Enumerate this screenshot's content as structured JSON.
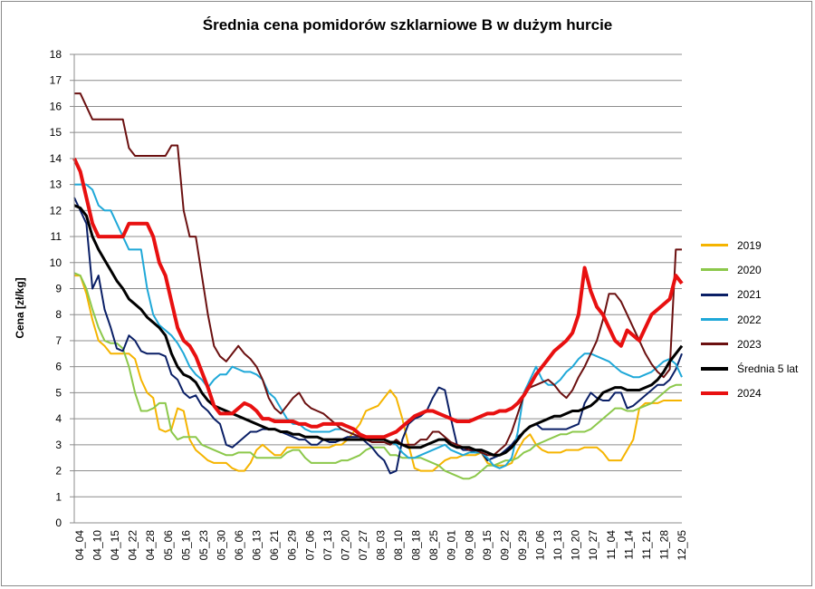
{
  "chart_data": {
    "type": "line",
    "title": "Średnia cena pomidorów szklarniowe B w dużym hurcie",
    "ylabel": "Cena [zł/kg]",
    "xlabel": "",
    "ylim": [
      0,
      18
    ],
    "yticks": [
      0,
      1,
      2,
      3,
      4,
      5,
      6,
      7,
      8,
      9,
      10,
      11,
      12,
      13,
      14,
      15,
      16,
      17,
      18
    ],
    "grid": true,
    "legend_position": "right",
    "x_tick_labels": [
      "04_04",
      "04_10",
      "04_15",
      "04_22",
      "04_28",
      "05_06",
      "05_16",
      "05_23",
      "05_30",
      "06_06",
      "06_13",
      "06_21",
      "06_29",
      "07_06",
      "07_13",
      "07_20",
      "07_27",
      "08_03",
      "08_10",
      "08_18",
      "08_25",
      "09_01",
      "09_08",
      "09_15",
      "09_22",
      "09_29",
      "10_06",
      "10_13",
      "10_20",
      "10_27",
      "11_04",
      "11_14",
      "11_21",
      "11_28",
      "12_05"
    ],
    "series": [
      {
        "name": "2019",
        "color": "#f5b400",
        "width": 2,
        "values": [
          9.5,
          9.5,
          8.8,
          7.8,
          7.0,
          6.8,
          6.5,
          6.5,
          6.5,
          6.5,
          6.3,
          5.5,
          5.0,
          4.8,
          3.6,
          3.5,
          3.6,
          4.4,
          4.3,
          3.2,
          2.8,
          2.6,
          2.4,
          2.3,
          2.3,
          2.3,
          2.1,
          2.0,
          2.0,
          2.3,
          2.8,
          3.0,
          2.8,
          2.6,
          2.6,
          2.9,
          2.9,
          2.9,
          2.9,
          2.9,
          2.9,
          2.9,
          2.9,
          3.0,
          3.0,
          3.2,
          3.5,
          3.8,
          4.3,
          4.4,
          4.5,
          4.8,
          5.1,
          4.8,
          4.0,
          3.0,
          2.1,
          2.0,
          2.0,
          2.0,
          2.2,
          2.4,
          2.5,
          2.5,
          2.6,
          2.6,
          2.6,
          2.7,
          2.3,
          2.2,
          2.2,
          2.2,
          2.3,
          2.8,
          3.2,
          3.4,
          3.0,
          2.8,
          2.7,
          2.7,
          2.7,
          2.8,
          2.8,
          2.8,
          2.9,
          2.9,
          2.9,
          2.7,
          2.4,
          2.4,
          2.4,
          2.8,
          3.2,
          4.4,
          4.6,
          4.6,
          4.6,
          4.7,
          4.7,
          4.7,
          4.7
        ]
      },
      {
        "name": "2020",
        "color": "#8cc84b",
        "width": 2,
        "values": [
          9.6,
          9.5,
          9.0,
          8.2,
          7.5,
          7.0,
          6.9,
          6.9,
          6.7,
          6.0,
          5.0,
          4.3,
          4.3,
          4.4,
          4.6,
          4.6,
          3.5,
          3.2,
          3.3,
          3.3,
          3.3,
          3.0,
          2.9,
          2.8,
          2.7,
          2.6,
          2.6,
          2.7,
          2.7,
          2.7,
          2.5,
          2.5,
          2.5,
          2.5,
          2.5,
          2.7,
          2.8,
          2.8,
          2.5,
          2.3,
          2.3,
          2.3,
          2.3,
          2.3,
          2.4,
          2.4,
          2.5,
          2.6,
          2.8,
          2.9,
          2.9,
          2.9,
          2.6,
          2.6,
          2.5,
          2.5,
          2.5,
          2.5,
          2.4,
          2.3,
          2.2,
          2.0,
          1.9,
          1.8,
          1.7,
          1.7,
          1.8,
          2.0,
          2.2,
          2.2,
          2.3,
          2.4,
          2.4,
          2.5,
          2.7,
          2.8,
          3.0,
          3.1,
          3.2,
          3.3,
          3.4,
          3.4,
          3.5,
          3.5,
          3.5,
          3.6,
          3.8,
          4.0,
          4.2,
          4.4,
          4.4,
          4.3,
          4.3,
          4.4,
          4.5,
          4.6,
          4.8,
          5.0,
          5.2,
          5.3,
          5.3
        ]
      },
      {
        "name": "2021",
        "color": "#0a1f66",
        "width": 2,
        "values": [
          12.5,
          12.0,
          11.5,
          9.0,
          9.5,
          8.2,
          7.5,
          6.7,
          6.6,
          7.2,
          7.0,
          6.6,
          6.5,
          6.5,
          6.5,
          6.4,
          5.7,
          5.5,
          5.0,
          4.8,
          4.9,
          4.5,
          4.3,
          4.0,
          3.8,
          3.0,
          2.9,
          3.1,
          3.3,
          3.5,
          3.5,
          3.6,
          3.6,
          3.6,
          3.5,
          3.4,
          3.3,
          3.2,
          3.2,
          3.0,
          3.0,
          3.2,
          3.1,
          3.1,
          3.2,
          3.3,
          3.3,
          3.3,
          3.1,
          2.9,
          2.6,
          2.4,
          1.9,
          2.0,
          3.2,
          3.8,
          4.0,
          4.1,
          4.3,
          4.8,
          5.2,
          5.1,
          4.0,
          3.0,
          2.8,
          2.8,
          2.7,
          2.7,
          2.4,
          2.5,
          2.6,
          2.8,
          3.0,
          3.3,
          3.5,
          3.7,
          3.8,
          3.6,
          3.6,
          3.6,
          3.6,
          3.6,
          3.7,
          3.8,
          4.6,
          5.0,
          4.8,
          4.7,
          4.7,
          5.0,
          5.0,
          4.4,
          4.5,
          4.7,
          4.9,
          5.1,
          5.3,
          5.3,
          5.5,
          5.9,
          6.5
        ]
      },
      {
        "name": "2022",
        "color": "#1fa8d8",
        "width": 2,
        "values": [
          13.0,
          13.0,
          13.0,
          12.8,
          12.2,
          12.0,
          12.0,
          11.5,
          11.0,
          10.5,
          10.5,
          10.5,
          9.0,
          8.0,
          7.6,
          7.4,
          7.2,
          6.9,
          6.5,
          6.0,
          5.7,
          5.5,
          5.2,
          5.5,
          5.7,
          5.7,
          6.0,
          5.9,
          5.8,
          5.8,
          5.7,
          5.5,
          5.0,
          4.8,
          4.4,
          4.0,
          3.8,
          3.8,
          3.6,
          3.5,
          3.5,
          3.5,
          3.5,
          3.6,
          3.6,
          3.5,
          3.4,
          3.3,
          3.3,
          3.3,
          3.2,
          3.2,
          3.1,
          3.0,
          2.7,
          2.5,
          2.5,
          2.6,
          2.7,
          2.8,
          2.9,
          3.0,
          2.8,
          2.7,
          2.6,
          2.7,
          2.7,
          2.7,
          2.5,
          2.2,
          2.1,
          2.2,
          2.5,
          3.5,
          5.0,
          5.5,
          6.0,
          5.5,
          5.3,
          5.3,
          5.5,
          5.8,
          6.0,
          6.3,
          6.5,
          6.5,
          6.4,
          6.3,
          6.2,
          6.0,
          5.8,
          5.7,
          5.6,
          5.6,
          5.7,
          5.8,
          6.0,
          6.2,
          6.3,
          6.1,
          5.6
        ]
      },
      {
        "name": "2023",
        "color": "#6b1010",
        "width": 2,
        "values": [
          16.5,
          16.5,
          16.0,
          15.5,
          15.5,
          15.5,
          15.5,
          15.5,
          15.5,
          14.4,
          14.1,
          14.1,
          14.1,
          14.1,
          14.1,
          14.1,
          14.5,
          14.5,
          12.0,
          11.0,
          11.0,
          9.5,
          8.0,
          6.8,
          6.4,
          6.2,
          6.5,
          6.8,
          6.5,
          6.3,
          6.0,
          5.5,
          4.8,
          4.4,
          4.2,
          4.5,
          4.8,
          5.0,
          4.6,
          4.4,
          4.3,
          4.2,
          4.0,
          3.8,
          3.6,
          3.5,
          3.4,
          3.3,
          3.2,
          3.1,
          3.1,
          3.1,
          3.0,
          3.2,
          3.0,
          3.0,
          3.0,
          3.2,
          3.2,
          3.5,
          3.5,
          3.3,
          3.1,
          3.0,
          2.9,
          2.8,
          2.8,
          2.7,
          2.6,
          2.6,
          2.8,
          3.0,
          3.5,
          4.2,
          4.9,
          5.2,
          5.3,
          5.4,
          5.5,
          5.3,
          5.0,
          4.8,
          5.1,
          5.6,
          6.0,
          6.5,
          7.0,
          7.8,
          8.8,
          8.8,
          8.5,
          8.0,
          7.5,
          7.0,
          6.5,
          6.1,
          5.8,
          5.6,
          5.9,
          10.5,
          10.5
        ]
      },
      {
        "name": "Średnia 5 lat",
        "color": "#000000",
        "width": 3,
        "values": [
          12.2,
          12.1,
          11.8,
          11.0,
          10.5,
          10.1,
          9.7,
          9.3,
          9.0,
          8.6,
          8.4,
          8.2,
          7.9,
          7.7,
          7.5,
          7.2,
          6.5,
          6.0,
          5.7,
          5.6,
          5.4,
          5.0,
          4.7,
          4.5,
          4.4,
          4.3,
          4.2,
          4.1,
          4.0,
          3.9,
          3.8,
          3.7,
          3.6,
          3.6,
          3.5,
          3.5,
          3.4,
          3.4,
          3.3,
          3.3,
          3.3,
          3.2,
          3.2,
          3.2,
          3.2,
          3.2,
          3.2,
          3.2,
          3.2,
          3.2,
          3.2,
          3.2,
          3.1,
          3.1,
          3.0,
          2.9,
          2.9,
          2.9,
          3.0,
          3.1,
          3.2,
          3.2,
          3.0,
          2.9,
          2.9,
          2.9,
          2.8,
          2.8,
          2.7,
          2.6,
          2.6,
          2.7,
          2.9,
          3.2,
          3.5,
          3.7,
          3.8,
          3.9,
          4.0,
          4.1,
          4.1,
          4.2,
          4.3,
          4.3,
          4.4,
          4.5,
          4.7,
          5.0,
          5.1,
          5.2,
          5.2,
          5.1,
          5.1,
          5.1,
          5.2,
          5.3,
          5.5,
          5.8,
          6.2,
          6.5,
          6.8
        ]
      },
      {
        "name": "2024",
        "color": "#e81010",
        "width": 4,
        "values": [
          14.0,
          13.5,
          12.5,
          11.5,
          11.0,
          11.0,
          11.0,
          11.0,
          11.0,
          11.5,
          11.5,
          11.5,
          11.5,
          11.0,
          10.0,
          9.5,
          8.5,
          7.5,
          7.0,
          6.8,
          6.4,
          5.8,
          5.2,
          4.5,
          4.2,
          4.2,
          4.2,
          4.4,
          4.6,
          4.5,
          4.3,
          4.0,
          4.0,
          3.9,
          3.9,
          3.9,
          3.9,
          3.8,
          3.8,
          3.7,
          3.7,
          3.8,
          3.8,
          3.8,
          3.8,
          3.7,
          3.6,
          3.4,
          3.3,
          3.3,
          3.3,
          3.3,
          3.4,
          3.5,
          3.7,
          3.9,
          4.1,
          4.2,
          4.3,
          4.3,
          4.2,
          4.1,
          4.0,
          3.9,
          3.9,
          3.9,
          4.0,
          4.1,
          4.2,
          4.2,
          4.3,
          4.3,
          4.4,
          4.6,
          4.9,
          5.3,
          5.7,
          6.0,
          6.3,
          6.6,
          6.8,
          7.0,
          7.3,
          8.0,
          9.8,
          8.9,
          8.3,
          8.0,
          7.5,
          7.0,
          6.8,
          7.4,
          7.2,
          7.0,
          7.5,
          8.0,
          8.2,
          8.4,
          8.6,
          9.5,
          9.2
        ]
      }
    ]
  }
}
